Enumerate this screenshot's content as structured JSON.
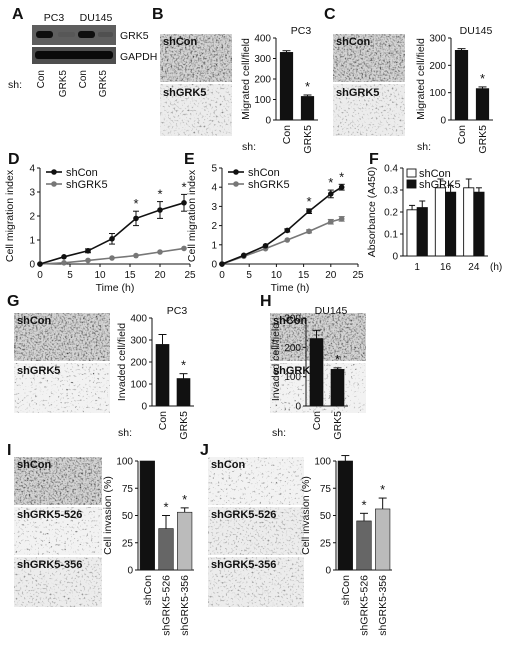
{
  "chart_data": [
    {
      "panel": "A",
      "type": "other",
      "column_groups": [
        "PC3",
        "DU145"
      ],
      "row_labels": [
        "GRK5",
        "GAPDH"
      ],
      "lanes": [
        "Con",
        "GRK5",
        "Con",
        "GRK5"
      ],
      "lane_prefix": "sh:"
    },
    {
      "panel": "B",
      "type": "bar",
      "title": "PC3",
      "ylabel": "Migrated cell/field",
      "ylim": [
        0,
        400
      ],
      "yticks": [
        0,
        100,
        200,
        300,
        400
      ],
      "axis_prefix": "sh:",
      "categories": [
        "Con",
        "GRK5"
      ],
      "values": [
        330,
        115
      ],
      "errors": [
        8,
        7
      ],
      "colors": [
        "#111111",
        "#111111"
      ],
      "sig": [
        "",
        "*"
      ],
      "images": [
        "shCon",
        "shGRK5"
      ]
    },
    {
      "panel": "C",
      "type": "bar",
      "title": "DU145",
      "ylabel": "Migrated cell/field",
      "ylim": [
        0,
        300
      ],
      "yticks": [
        0,
        100,
        200,
        300
      ],
      "axis_prefix": "sh:",
      "categories": [
        "Con",
        "GRK5"
      ],
      "values": [
        255,
        115
      ],
      "errors": [
        6,
        6
      ],
      "colors": [
        "#111111",
        "#111111"
      ],
      "sig": [
        "",
        "*"
      ],
      "images": [
        "shCon",
        "shGRK5"
      ]
    },
    {
      "panel": "D",
      "type": "line",
      "xlabel": "Time (h)",
      "ylabel": "Cell migration index",
      "xlim": [
        0,
        25
      ],
      "ylim": [
        0,
        4
      ],
      "xticks": [
        0,
        5,
        10,
        15,
        20,
        25
      ],
      "yticks": [
        0,
        1,
        2,
        3,
        4
      ],
      "x": [
        0,
        4,
        8,
        12,
        16,
        20,
        24
      ],
      "series": [
        {
          "name": "shCon",
          "color": "#111111",
          "values": [
            0,
            0.3,
            0.55,
            1.05,
            1.9,
            2.25,
            2.55
          ],
          "errors": [
            0,
            0.05,
            0.08,
            0.22,
            0.3,
            0.35,
            0.35
          ]
        },
        {
          "name": "shGRK5",
          "color": "#777777",
          "values": [
            0,
            0.05,
            0.15,
            0.25,
            0.35,
            0.5,
            0.65
          ],
          "errors": [
            0,
            0.02,
            0.03,
            0.04,
            0.05,
            0.06,
            0.06
          ]
        }
      ],
      "sig_x": [
        16,
        20,
        24
      ],
      "legend": "top-left"
    },
    {
      "panel": "E",
      "type": "line",
      "xlabel": "Time (h)",
      "ylabel": "Cell migration index",
      "xlim": [
        0,
        25
      ],
      "ylim": [
        0,
        5
      ],
      "xticks": [
        0,
        5,
        10,
        15,
        20,
        25
      ],
      "yticks": [
        0,
        1,
        2,
        3,
        4,
        5
      ],
      "x": [
        0,
        4,
        8,
        12,
        16,
        20,
        22
      ],
      "series": [
        {
          "name": "shCon",
          "color": "#111111",
          "values": [
            0,
            0.45,
            0.95,
            1.75,
            2.75,
            3.65,
            4.0
          ],
          "errors": [
            0,
            0.04,
            0.05,
            0.08,
            0.12,
            0.2,
            0.15
          ]
        },
        {
          "name": "shGRK5",
          "color": "#777777",
          "values": [
            0,
            0.4,
            0.8,
            1.25,
            1.7,
            2.2,
            2.35
          ],
          "errors": [
            0,
            0.04,
            0.05,
            0.06,
            0.08,
            0.12,
            0.12
          ]
        }
      ],
      "sig_x": [
        16,
        20,
        22
      ],
      "legend": "top-left"
    },
    {
      "panel": "F",
      "type": "bar",
      "ylabel": "Absorbance (A450)",
      "ylim": [
        0,
        0.4
      ],
      "yticks": [
        0,
        0.1,
        0.2,
        0.3,
        0.4
      ],
      "categories": [
        "1",
        "16",
        "24"
      ],
      "x_unit": "(h)",
      "series": [
        {
          "name": "shCon",
          "color": "#ffffff",
          "values": [
            0.21,
            0.31,
            0.31
          ],
          "errors": [
            0.02,
            0.04,
            0.04
          ]
        },
        {
          "name": "shGRK5",
          "color": "#111111",
          "values": [
            0.22,
            0.29,
            0.29
          ],
          "errors": [
            0.03,
            0.03,
            0.02
          ]
        }
      ],
      "legend": "top-left"
    },
    {
      "panel": "G",
      "type": "bar",
      "title": "PC3",
      "ylabel": "Invaded cell/field",
      "ylim": [
        0,
        400
      ],
      "yticks": [
        0,
        100,
        200,
        300,
        400
      ],
      "axis_prefix": "sh:",
      "categories": [
        "Con",
        "GRK5"
      ],
      "values": [
        280,
        125
      ],
      "errors": [
        45,
        22
      ],
      "colors": [
        "#111111",
        "#111111"
      ],
      "sig": [
        "",
        "*"
      ],
      "images": [
        "shCon",
        "shGRK5"
      ]
    },
    {
      "panel": "H",
      "type": "bar",
      "title": "DU145",
      "ylabel": "Invaded cell/field",
      "ylim": [
        0,
        300
      ],
      "yticks": [
        0,
        100,
        200,
        300
      ],
      "axis_prefix": "sh:",
      "categories": [
        "Con",
        "GRK5"
      ],
      "values": [
        230,
        125
      ],
      "errors": [
        28,
        5
      ],
      "colors": [
        "#111111",
        "#111111"
      ],
      "sig": [
        "",
        "*"
      ],
      "images": [
        "shCon",
        "shGRK5"
      ]
    },
    {
      "panel": "I",
      "type": "bar",
      "ylabel": "Cell invasion (%)",
      "ylim": [
        0,
        100
      ],
      "yticks": [
        0,
        25,
        50,
        75,
        100
      ],
      "categories": [
        "shCon",
        "shGRK5-526",
        "shGRK5-356"
      ],
      "values": [
        100,
        38,
        53
      ],
      "errors": [
        0,
        12,
        4
      ],
      "colors": [
        "#111111",
        "#666666",
        "#bbbbbb"
      ],
      "sig": [
        "",
        "*",
        "*"
      ],
      "images": [
        "shCon",
        "shGRK5-526",
        "shGRK5-356"
      ]
    },
    {
      "panel": "J",
      "type": "bar",
      "ylabel": "Cell invasion (%)",
      "ylim": [
        0,
        100
      ],
      "yticks": [
        0,
        25,
        50,
        75,
        100
      ],
      "categories": [
        "shCon",
        "shGRK5-526",
        "shGRK5-356"
      ],
      "values": [
        100,
        45,
        56
      ],
      "errors": [
        5,
        7,
        10
      ],
      "colors": [
        "#111111",
        "#666666",
        "#bbbbbb"
      ],
      "sig": [
        "",
        "*",
        "*"
      ],
      "images": [
        "shCon",
        "shGRK5-526",
        "shGRK5-356"
      ]
    }
  ]
}
